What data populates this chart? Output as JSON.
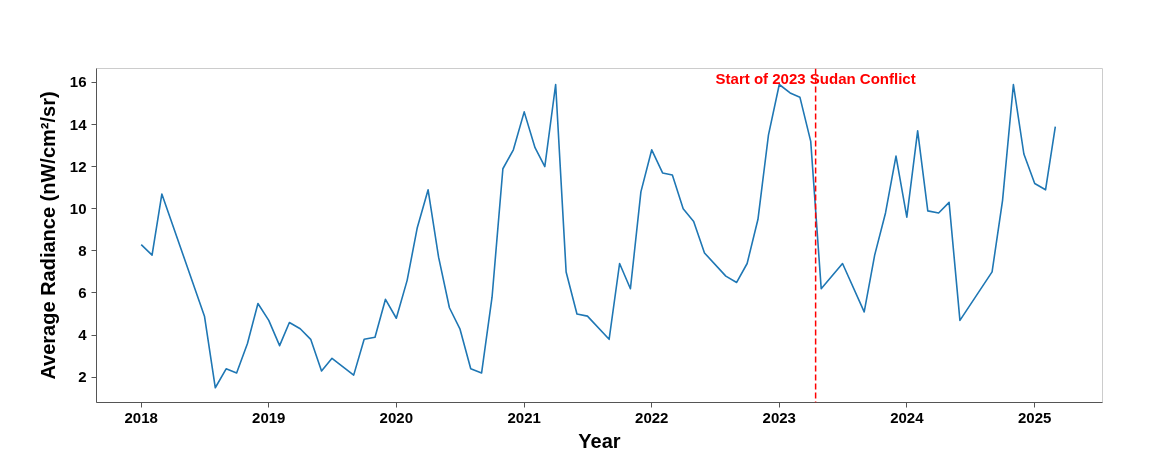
{
  "chart_data": {
    "type": "line",
    "xlabel": "Year",
    "ylabel": "Average Radiance (nW/cm²/sr)",
    "x": [
      "2018-01",
      "2018-02",
      "2018-03",
      "2018-07",
      "2018-08",
      "2018-09",
      "2018-10",
      "2018-11",
      "2018-12",
      "2019-01",
      "2019-02",
      "2019-03",
      "2019-04",
      "2019-05",
      "2019-06",
      "2019-07",
      "2019-09",
      "2019-10",
      "2019-11",
      "2019-12",
      "2020-01",
      "2020-02",
      "2020-03",
      "2020-04",
      "2020-05",
      "2020-06",
      "2020-07",
      "2020-08",
      "2020-09",
      "2020-10",
      "2020-11",
      "2020-12",
      "2021-01",
      "2021-02",
      "2021-03",
      "2021-04",
      "2021-05",
      "2021-06",
      "2021-07",
      "2021-09",
      "2021-10",
      "2021-11",
      "2021-12",
      "2022-01",
      "2022-02",
      "2022-03",
      "2022-04",
      "2022-05",
      "2022-06",
      "2022-08",
      "2022-09",
      "2022-10",
      "2022-11",
      "2022-12",
      "2023-01",
      "2023-02",
      "2023-03",
      "2023-04",
      "2023-05",
      "2023-07",
      "2023-09",
      "2023-10",
      "2023-11",
      "2023-12",
      "2024-01",
      "2024-02",
      "2024-03",
      "2024-04",
      "2024-05",
      "2024-06",
      "2024-09",
      "2024-10",
      "2024-11",
      "2024-12",
      "2025-01",
      "2025-02",
      "2025-03"
    ],
    "series": [
      {
        "color": "#1f77b4",
        "values": [
          8.3,
          7.8,
          10.7,
          4.9,
          1.5,
          2.4,
          2.2,
          3.6,
          5.5,
          4.7,
          3.5,
          4.6,
          4.3,
          3.8,
          2.3,
          2.9,
          2.1,
          3.8,
          3.9,
          5.7,
          4.8,
          6.6,
          9.1,
          10.9,
          7.7,
          5.3,
          4.3,
          2.4,
          2.2,
          5.8,
          11.9,
          12.8,
          14.6,
          12.9,
          12.0,
          15.9,
          7.0,
          5.0,
          4.9,
          3.8,
          7.4,
          6.2,
          10.8,
          12.8,
          11.7,
          11.6,
          10.0,
          9.4,
          7.9,
          6.8,
          6.5,
          7.4,
          9.5,
          13.5,
          15.9,
          15.5,
          15.3,
          13.2,
          6.2,
          7.4,
          5.1,
          7.8,
          9.8,
          12.5,
          9.6,
          13.7,
          9.9,
          9.8,
          10.3,
          4.7,
          7.0,
          10.4,
          15.9,
          12.6,
          11.2,
          10.9,
          13.9
        ]
      }
    ],
    "xlim": [
      "2017-08-26",
      "2025-07-14"
    ],
    "xticks": [
      {
        "value": "2018-01-01",
        "label": "2018"
      },
      {
        "value": "2019-01-01",
        "label": "2019"
      },
      {
        "value": "2020-01-01",
        "label": "2020"
      },
      {
        "value": "2021-01-01",
        "label": "2021"
      },
      {
        "value": "2022-01-01",
        "label": "2022"
      },
      {
        "value": "2023-01-01",
        "label": "2023"
      },
      {
        "value": "2024-01-01",
        "label": "2024"
      },
      {
        "value": "2025-01-01",
        "label": "2025"
      }
    ],
    "ylim": [
      0.8,
      16.66
    ],
    "yticks": [
      2,
      4,
      6,
      8,
      10,
      12,
      14,
      16
    ],
    "ref_lines": [
      {
        "axis": "x",
        "value": "2023-04-15",
        "label": "Start of 2023 Sudan Conflict",
        "color": "#ff0000",
        "line_style": "dashed"
      }
    ],
    "grid": false,
    "marker": "none",
    "line_style": "solid"
  }
}
